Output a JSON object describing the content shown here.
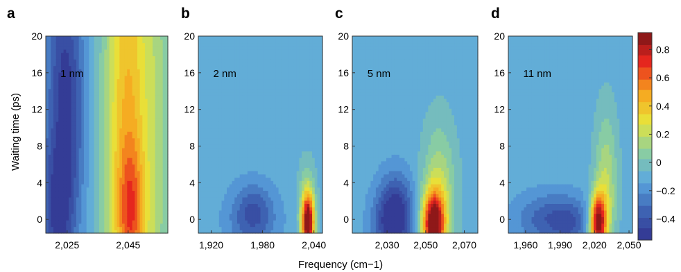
{
  "figure": {
    "ylabel": "Waiting time (ps)",
    "xlabel": "Frequency (cm−1)"
  },
  "colorbar": {
    "range": [
      -0.55,
      0.92
    ],
    "ticks": [
      {
        "v": 0.8,
        "t": "0.8"
      },
      {
        "v": 0.6,
        "t": "0.6"
      },
      {
        "v": 0.4,
        "t": "0.4"
      },
      {
        "v": 0.2,
        "t": "0.2"
      },
      {
        "v": 0.0,
        "t": "0"
      },
      {
        "v": -0.2,
        "t": "−0.2"
      },
      {
        "v": -0.4,
        "t": "−0.4"
      }
    ],
    "colors": [
      "#31328f",
      "#3e63b3",
      "#5ba7e0",
      "#8ccf9f",
      "#e8e43a",
      "#f7a31e",
      "#e8261e",
      "#7a1518"
    ]
  },
  "chart_data": [
    {
      "type": "heatmap",
      "panel_label": "a",
      "annotation": "1 nm",
      "xlim": [
        2018,
        2058
      ],
      "ylim": [
        -1.5,
        20
      ],
      "x_ticks": [
        {
          "v": 2025,
          "t": "2,025"
        },
        {
          "v": 2045,
          "t": "2,045"
        }
      ],
      "y_ticks": [
        {
          "v": 0,
          "t": "0"
        },
        {
          "v": 4,
          "t": "4"
        },
        {
          "v": 8,
          "t": "8"
        },
        {
          "v": 12,
          "t": "12"
        },
        {
          "v": 16,
          "t": "16"
        },
        {
          "v": 20,
          "t": "20"
        }
      ],
      "background": -0.1,
      "features": [
        {
          "x": 2022,
          "y": 1,
          "sx": 4,
          "sy": 7,
          "a": -0.4
        },
        {
          "x": 2026,
          "y": 12,
          "sx": 4,
          "sy": 8,
          "a": -0.25
        },
        {
          "x": 2023,
          "y": 19,
          "sx": 4,
          "sy": 6,
          "a": -0.2
        },
        {
          "x": 2045,
          "y": 9,
          "sx": 5.5,
          "sy": 25,
          "a": 0.55
        },
        {
          "x": 2046,
          "y": 1,
          "sx": 3,
          "sy": 5,
          "a": 0.3
        },
        {
          "x": 2055,
          "y": 10,
          "sx": 3,
          "sy": 25,
          "a": 0.15
        }
      ]
    },
    {
      "type": "heatmap",
      "panel_label": "b",
      "annotation": "2 nm",
      "xlim": [
        1905,
        2050
      ],
      "ylim": [
        -1.5,
        20
      ],
      "x_ticks": [
        {
          "v": 1920,
          "t": "1,920"
        },
        {
          "v": 1980,
          "t": "1,980"
        },
        {
          "v": 2040,
          "t": "2,040"
        }
      ],
      "y_ticks": [
        {
          "v": 0,
          "t": "0"
        },
        {
          "v": 4,
          "t": "4"
        },
        {
          "v": 8,
          "t": "8"
        },
        {
          "v": 12,
          "t": "12"
        },
        {
          "v": 16,
          "t": "16"
        },
        {
          "v": 20,
          "t": "20"
        }
      ],
      "background": -0.1,
      "features": [
        {
          "x": 1968,
          "y": 0,
          "sx": 20,
          "sy": 2.5,
          "a": -0.25
        },
        {
          "x": 1970,
          "y": 1.5,
          "sx": 14,
          "sy": 1.8,
          "a": -0.1
        },
        {
          "x": 2033,
          "y": -0.5,
          "sx": 5,
          "sy": 2.2,
          "a": 0.95
        },
        {
          "x": 2032,
          "y": 1.5,
          "sx": 7,
          "sy": 3.2,
          "a": 0.25
        }
      ]
    },
    {
      "type": "heatmap",
      "panel_label": "c",
      "annotation": "5 nm",
      "xlim": [
        2012,
        2077
      ],
      "ylim": [
        -1.5,
        20
      ],
      "x_ticks": [
        {
          "v": 2030,
          "t": "2,030"
        },
        {
          "v": 2050,
          "t": "2,050"
        },
        {
          "v": 2070,
          "t": "2,070"
        }
      ],
      "y_ticks": [
        {
          "v": 0,
          "t": "0"
        },
        {
          "v": 4,
          "t": "4"
        },
        {
          "v": 8,
          "t": "8"
        },
        {
          "v": 12,
          "t": "12"
        },
        {
          "v": 16,
          "t": "16"
        },
        {
          "v": 20,
          "t": "20"
        }
      ],
      "background": -0.1,
      "features": [
        {
          "x": 2033,
          "y": -0.5,
          "sx": 7,
          "sy": 2.8,
          "a": -0.45
        },
        {
          "x": 2035,
          "y": 2.5,
          "sx": 6,
          "sy": 2.5,
          "a": -0.15
        },
        {
          "x": 2054,
          "y": -0.5,
          "sx": 4,
          "sy": 2.5,
          "a": 0.95
        },
        {
          "x": 2057,
          "y": 2.5,
          "sx": 6,
          "sy": 5.5,
          "a": 0.3
        }
      ]
    },
    {
      "type": "heatmap",
      "panel_label": "d",
      "annotation": "11 nm",
      "xlim": [
        1945,
        2053
      ],
      "ylim": [
        -1.5,
        20
      ],
      "x_ticks": [
        {
          "v": 1960,
          "t": "1,960"
        },
        {
          "v": 1990,
          "t": "1,990"
        },
        {
          "v": 2020,
          "t": "2,020"
        },
        {
          "v": 2050,
          "t": "2,050"
        }
      ],
      "y_ticks": [
        {
          "v": 0,
          "t": "0"
        },
        {
          "v": 4,
          "t": "4"
        },
        {
          "v": 8,
          "t": "8"
        },
        {
          "v": 12,
          "t": "12"
        },
        {
          "v": 16,
          "t": "16"
        },
        {
          "v": 20,
          "t": "20"
        }
      ],
      "background": -0.1,
      "features": [
        {
          "x": 1985,
          "y": 0,
          "sx": 22,
          "sy": 2,
          "a": -0.3
        },
        {
          "x": 1998,
          "y": -0.5,
          "sx": 8,
          "sy": 1.5,
          "a": -0.1
        },
        {
          "x": 2023,
          "y": -0.3,
          "sx": 5,
          "sy": 2.2,
          "a": 0.95
        },
        {
          "x": 2030,
          "y": 3,
          "sx": 7,
          "sy": 6,
          "a": 0.3
        }
      ]
    }
  ]
}
